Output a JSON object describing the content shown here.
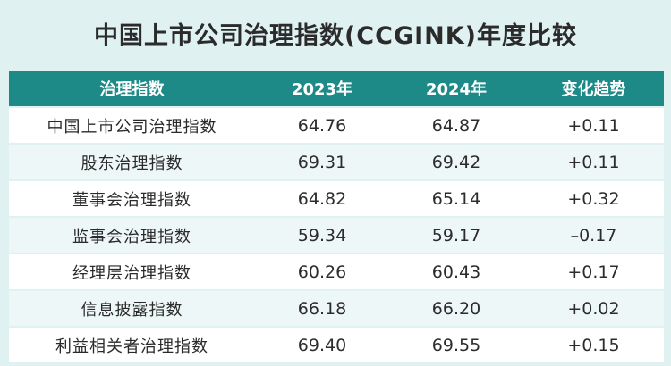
{
  "title": "中国上市公司治理指数(CCGINK)年度比较",
  "table": {
    "headers": [
      "治理指数",
      "2023年",
      "2024年",
      "变化趋势"
    ],
    "rows": [
      [
        "中国上市公司治理指数",
        "64.76",
        "64.87",
        "+0.11"
      ],
      [
        "股东治理指数",
        "69.31",
        "69.42",
        "+0.11"
      ],
      [
        "董事会治理指数",
        "64.82",
        "65.14",
        "+0.32"
      ],
      [
        "监事会治理指数",
        "59.34",
        "59.17",
        "–0.17"
      ],
      [
        "经理层治理指数",
        "60.26",
        "60.43",
        "+0.17"
      ],
      [
        "信息披露指数",
        "66.18",
        "66.20",
        "+0.02"
      ],
      [
        "利益相关者治理指数",
        "69.40",
        "69.55",
        "+0.15"
      ]
    ]
  },
  "colors": {
    "header_bg": "#1e8a88",
    "page_bg": "#dff2f1"
  }
}
